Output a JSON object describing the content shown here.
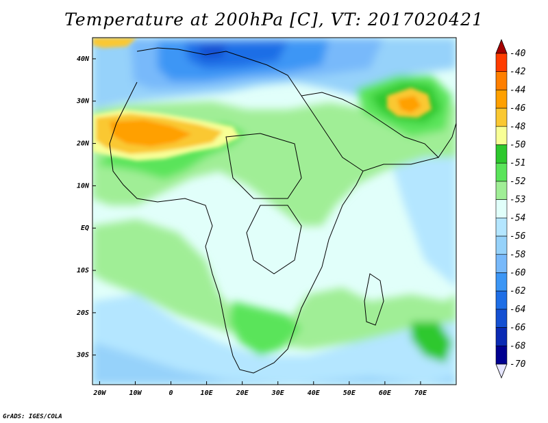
{
  "title": "Temperature at 200hPa [C], VT: 2017020421",
  "credit": "GrADS: IGES/COLA",
  "map": {
    "lat_labels": [
      "40N",
      "30N",
      "20N",
      "10N",
      "EQ",
      "10S",
      "20S",
      "30S"
    ],
    "lat_values": [
      40,
      30,
      20,
      10,
      0,
      -10,
      -20,
      -30
    ],
    "lon_labels": [
      "20W",
      "10W",
      "0",
      "10E",
      "20E",
      "30E",
      "40E",
      "50E",
      "60E",
      "70E"
    ],
    "lon_values": [
      -20,
      -10,
      0,
      10,
      20,
      30,
      40,
      50,
      60,
      70
    ],
    "lon_range": [
      -22,
      80
    ],
    "lat_range": [
      -37,
      45
    ],
    "background_color": "#e1fffa"
  },
  "colorbar": {
    "labels": [
      "-40",
      "-42",
      "-44",
      "-46",
      "-48",
      "-50",
      "-51",
      "-52",
      "-53",
      "-54",
      "-56",
      "-58",
      "-60",
      "-62",
      "-64",
      "-66",
      "-68",
      "-70"
    ],
    "colors": [
      "#a50000",
      "#ff3c00",
      "#ff7f00",
      "#ffa000",
      "#fac832",
      "#f8ff96",
      "#2dc82d",
      "#5ae45a",
      "#a0ee96",
      "#e1fffa",
      "#b4e6ff",
      "#96d2fa",
      "#78b9fa",
      "#3c96f5",
      "#1e6ee6",
      "#1450d2",
      "#0a2ab4",
      "#000090",
      "#e6e6ff"
    ]
  }
}
